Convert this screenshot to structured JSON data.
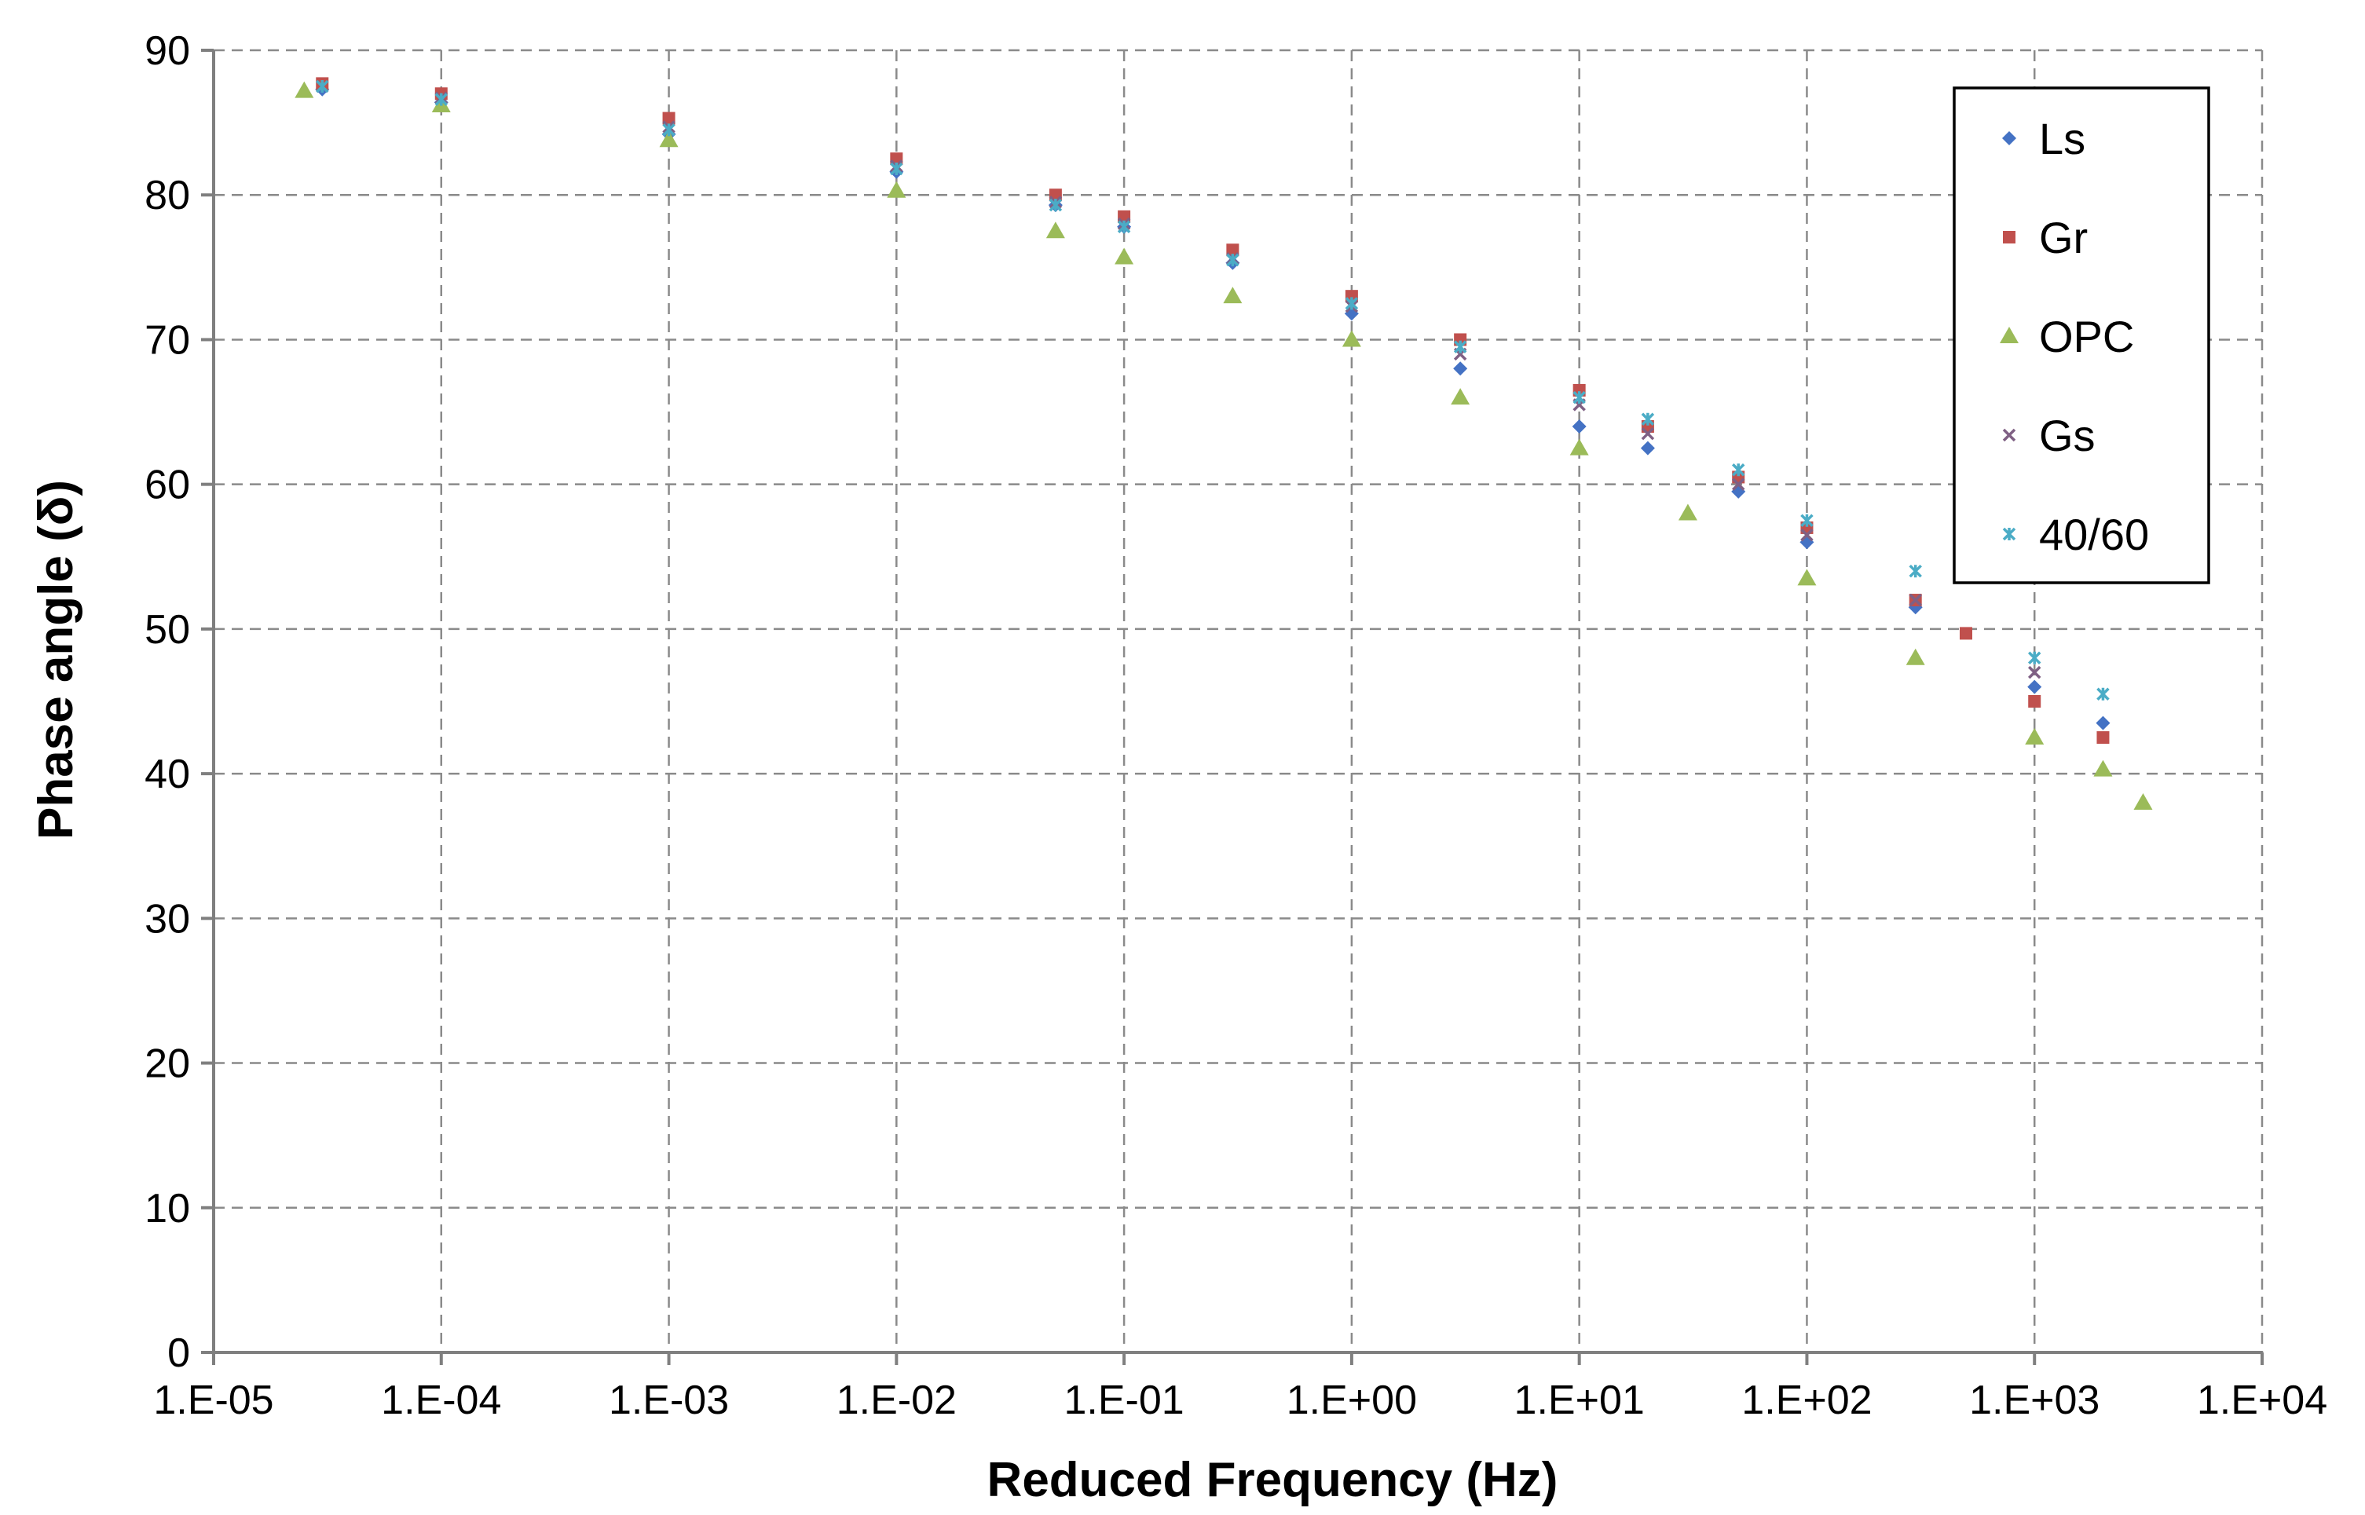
{
  "chart_data": {
    "type": "scatter",
    "title": "",
    "xlabel": "Reduced Frequency (Hz)",
    "ylabel": "Phase angle (δ)",
    "x_scale": "log",
    "xlim": [
      1e-05,
      10000.0
    ],
    "ylim": [
      0,
      90
    ],
    "x_tick_labels": [
      "1.E-05",
      "1.E-04",
      "1.E-03",
      "1.E-02",
      "1.E-01",
      "1.E+00",
      "1.E+01",
      "1.E+02",
      "1.E+03",
      "1.E+04"
    ],
    "y_tick_labels": [
      "0",
      "10",
      "20",
      "30",
      "40",
      "50",
      "60",
      "70",
      "80",
      "90"
    ],
    "grid": true,
    "legend_position": "top-right",
    "series": [
      {
        "name": "Ls",
        "marker": "diamond",
        "color": "#4472C4",
        "x": [
          3e-05,
          0.0001,
          0.001,
          0.01,
          0.05,
          0.1,
          0.3,
          1,
          3,
          10,
          20,
          50,
          100,
          300,
          1000,
          2000
        ],
        "y": [
          87.3,
          86.4,
          84.2,
          81.6,
          79.3,
          77.8,
          75.3,
          71.8,
          68.0,
          64.0,
          62.5,
          59.5,
          56.0,
          51.5,
          46.0,
          43.5
        ]
      },
      {
        "name": "Gr",
        "marker": "square",
        "color": "#C0504D",
        "x": [
          3e-05,
          0.0001,
          0.001,
          0.01,
          0.05,
          0.1,
          0.3,
          1,
          3,
          10,
          20,
          50,
          100,
          300,
          500,
          1000,
          2000
        ],
        "y": [
          87.7,
          87.0,
          85.3,
          82.5,
          80.0,
          78.5,
          76.2,
          73.0,
          70.0,
          66.5,
          64.0,
          60.5,
          57.0,
          52.0,
          49.7,
          45.0,
          42.5
        ]
      },
      {
        "name": "OPC",
        "marker": "triangle",
        "color": "#9BBB59",
        "x": [
          2.5e-05,
          0.0001,
          0.001,
          0.01,
          0.05,
          0.1,
          0.3,
          1,
          3,
          10,
          30,
          100,
          300,
          1000,
          2000,
          3000
        ],
        "y": [
          87.2,
          86.2,
          83.8,
          80.3,
          77.5,
          75.7,
          73.0,
          70.0,
          66.0,
          62.5,
          58.0,
          53.5,
          48.0,
          42.5,
          40.3,
          38.0
        ]
      },
      {
        "name": "Gs",
        "marker": "x",
        "color": "#7F6084",
        "x": [
          3e-05,
          0.0001,
          0.001,
          0.01,
          0.05,
          0.1,
          0.3,
          1,
          3,
          10,
          20,
          50,
          100,
          300,
          1000
        ],
        "y": [
          87.5,
          86.7,
          84.7,
          82.0,
          79.5,
          78.0,
          75.6,
          72.3,
          69.0,
          65.5,
          63.5,
          60.0,
          56.5,
          52.0,
          47.0
        ]
      },
      {
        "name": "40/60",
        "marker": "star",
        "color": "#4BACC6",
        "x": [
          3e-05,
          0.0001,
          0.001,
          0.01,
          0.05,
          0.1,
          0.3,
          1,
          3,
          10,
          20,
          50,
          100,
          300,
          1000,
          2000
        ],
        "y": [
          87.5,
          86.6,
          84.5,
          81.8,
          79.3,
          77.8,
          75.5,
          72.5,
          69.5,
          66.0,
          64.5,
          61.0,
          57.5,
          54.0,
          48.0,
          45.5
        ]
      }
    ]
  }
}
